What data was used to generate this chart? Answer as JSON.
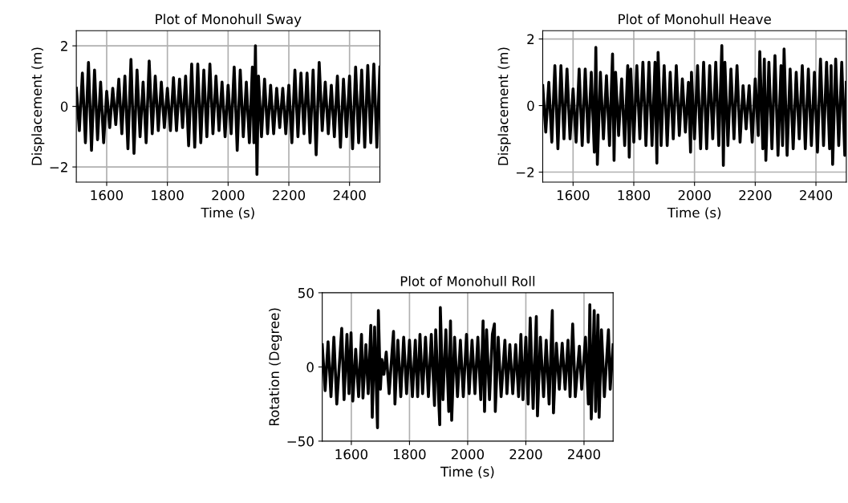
{
  "chart_data": [
    {
      "type": "line",
      "title": "Plot of Monohull Sway",
      "xlabel": "Time (s)",
      "ylabel": "Displacement (m)",
      "xlim": [
        1500,
        2500
      ],
      "xticks": [
        1600,
        1800,
        2000,
        2200,
        2400
      ],
      "ylim": [
        -2.5,
        2.5
      ],
      "yticks": [
        -2,
        0,
        2
      ],
      "grid": true,
      "series": [
        {
          "color": "#000000",
          "x": [
            1500,
            1510,
            1520,
            1530,
            1540,
            1550,
            1560,
            1570,
            1580,
            1590,
            1600,
            1610,
            1620,
            1630,
            1640,
            1650,
            1660,
            1670,
            1680,
            1690,
            1700,
            1710,
            1720,
            1730,
            1740,
            1750,
            1760,
            1770,
            1780,
            1790,
            1800,
            1810,
            1820,
            1830,
            1840,
            1850,
            1860,
            1870,
            1880,
            1890,
            1900,
            1910,
            1920,
            1930,
            1940,
            1950,
            1960,
            1970,
            1980,
            1990,
            2000,
            2010,
            2020,
            2030,
            2040,
            2050,
            2060,
            2070,
            2080,
            2085,
            2090,
            2095,
            2100,
            2110,
            2120,
            2130,
            2140,
            2150,
            2160,
            2170,
            2180,
            2190,
            2200,
            2210,
            2220,
            2230,
            2240,
            2250,
            2260,
            2270,
            2280,
            2290,
            2300,
            2310,
            2320,
            2330,
            2340,
            2350,
            2360,
            2370,
            2380,
            2390,
            2400,
            2410,
            2420,
            2430,
            2440,
            2450,
            2460,
            2470,
            2480,
            2490,
            2500
          ],
          "values": [
            0.6,
            -0.8,
            1.1,
            -1.2,
            1.45,
            -1.45,
            1.2,
            -1.1,
            0.8,
            -1.2,
            0.5,
            -0.7,
            0.6,
            -0.6,
            0.9,
            -0.9,
            1.0,
            -1.4,
            1.55,
            -1.55,
            1.2,
            -1.0,
            0.8,
            -1.2,
            1.5,
            -0.9,
            1.0,
            -0.8,
            0.8,
            -0.7,
            0.6,
            -0.8,
            0.95,
            -0.8,
            0.9,
            -0.7,
            1.0,
            -1.3,
            1.4,
            -1.35,
            1.4,
            -1.2,
            1.2,
            -1.0,
            1.4,
            -0.9,
            1.0,
            -0.8,
            0.8,
            -1.0,
            0.7,
            -0.9,
            1.3,
            -1.45,
            1.2,
            -1.0,
            0.8,
            -1.2,
            1.3,
            -1.2,
            2.0,
            -2.25,
            1.0,
            -1.0,
            0.9,
            -0.9,
            0.7,
            -0.9,
            0.6,
            -0.7,
            0.6,
            -0.9,
            0.7,
            -1.2,
            1.2,
            -1.0,
            1.1,
            -0.9,
            1.1,
            -1.2,
            1.2,
            -1.6,
            1.45,
            -0.8,
            0.8,
            -0.9,
            0.7,
            -1.0,
            1.0,
            -1.35,
            0.9,
            -1.0,
            1.0,
            -1.4,
            1.3,
            -1.2,
            1.2,
            -1.35,
            1.35,
            -1.2,
            1.4,
            -1.35,
            1.3
          ]
        }
      ]
    },
    {
      "type": "line",
      "title": "Plot of Monohull Heave",
      "xlabel": "Time (s)",
      "ylabel": "Displacement (m)",
      "xlim": [
        1500,
        2500
      ],
      "xticks": [
        1600,
        1800,
        2000,
        2200,
        2400
      ],
      "ylim": [
        -2.3,
        2.25
      ],
      "yticks": [
        -2,
        0,
        2
      ],
      "grid": true,
      "series": [
        {
          "color": "#000000",
          "x": [
            1500,
            1510,
            1520,
            1530,
            1540,
            1550,
            1560,
            1570,
            1580,
            1590,
            1600,
            1610,
            1620,
            1630,
            1640,
            1650,
            1660,
            1670,
            1675,
            1680,
            1690,
            1700,
            1710,
            1720,
            1730,
            1735,
            1740,
            1750,
            1760,
            1770,
            1780,
            1785,
            1790,
            1800,
            1810,
            1820,
            1830,
            1840,
            1850,
            1860,
            1870,
            1876,
            1880,
            1890,
            1900,
            1910,
            1920,
            1930,
            1940,
            1950,
            1960,
            1970,
            1980,
            1987,
            1990,
            2000,
            2010,
            2020,
            2030,
            2040,
            2050,
            2060,
            2070,
            2080,
            2090,
            2095,
            2100,
            2110,
            2120,
            2130,
            2140,
            2150,
            2160,
            2170,
            2180,
            2190,
            2200,
            2210,
            2215,
            2225,
            2230,
            2235,
            2245,
            2255,
            2265,
            2275,
            2285,
            2290,
            2295,
            2305,
            2315,
            2325,
            2335,
            2345,
            2355,
            2365,
            2375,
            2385,
            2395,
            2405,
            2415,
            2425,
            2435,
            2445,
            2450,
            2455,
            2465,
            2475,
            2485,
            2495,
            2500
          ],
          "values": [
            0.6,
            -0.8,
            0.7,
            -1.1,
            1.2,
            -1.3,
            1.2,
            -1.0,
            1.1,
            -1.0,
            0.5,
            -1.1,
            1.1,
            -1.2,
            1.1,
            -1.1,
            1.0,
            -1.4,
            1.75,
            -1.77,
            1.0,
            -1.0,
            0.9,
            -1.2,
            1.55,
            -1.65,
            1.0,
            -0.9,
            0.8,
            -1.2,
            1.2,
            -1.55,
            1.1,
            -1.1,
            1.2,
            -1.0,
            1.3,
            -1.2,
            1.3,
            -1.2,
            1.3,
            -1.73,
            1.6,
            -1.2,
            1.2,
            -1.2,
            1.0,
            -1.0,
            1.2,
            -0.9,
            0.8,
            -0.8,
            0.7,
            -1.4,
            1.0,
            -1.0,
            1.2,
            -1.3,
            1.3,
            -1.3,
            1.2,
            -1.0,
            1.3,
            -1.2,
            1.8,
            -1.8,
            1.3,
            -1.2,
            1.1,
            -1.0,
            1.2,
            -1.1,
            0.6,
            -0.7,
            0.6,
            -1.1,
            0.8,
            -0.9,
            1.62,
            -1.3,
            1.4,
            -1.65,
            1.3,
            -1.3,
            1.5,
            -1.5,
            1.2,
            -1.2,
            1.7,
            -1.5,
            1.1,
            -1.3,
            1.0,
            -1.0,
            1.2,
            -1.3,
            1.1,
            -1.2,
            1.0,
            -1.4,
            1.4,
            -1.2,
            1.3,
            -1.3,
            1.2,
            -1.77,
            1.4,
            -1.2,
            1.3,
            -1.5,
            0.7
          ]
        }
      ]
    },
    {
      "type": "line",
      "title": "Plot of Monohull Roll",
      "xlabel": "Time (s)",
      "ylabel": "Rotation (Degree)",
      "xlim": [
        1500,
        2500
      ],
      "xticks": [
        1600,
        1800,
        2000,
        2200,
        2400
      ],
      "ylim": [
        -50,
        50
      ],
      "yticks": [
        -50,
        0,
        50
      ],
      "grid": "x",
      "series": [
        {
          "color": "#000000",
          "x": [
            1500,
            1510,
            1520,
            1530,
            1540,
            1550,
            1567,
            1575,
            1585,
            1592,
            1599,
            1605,
            1615,
            1625,
            1635,
            1640,
            1650,
            1658,
            1667,
            1672,
            1680,
            1690,
            1693,
            1700,
            1705,
            1712,
            1720,
            1730,
            1745,
            1750,
            1760,
            1770,
            1780,
            1790,
            1800,
            1810,
            1820,
            1828,
            1836,
            1845,
            1855,
            1865,
            1875,
            1886,
            1890,
            1904,
            1906,
            1915,
            1925,
            1935,
            1941,
            1945,
            1955,
            1965,
            1975,
            1985,
            1996,
            2005,
            2015,
            2025,
            2035,
            2045,
            2053,
            2058,
            2065,
            2075,
            2085,
            2092,
            2095,
            2105,
            2115,
            2128,
            2135,
            2145,
            2155,
            2165,
            2175,
            2183,
            2190,
            2200,
            2208,
            2215,
            2225,
            2236,
            2240,
            2250,
            2261,
            2270,
            2280,
            2291,
            2295,
            2305,
            2315,
            2325,
            2335,
            2345,
            2352,
            2361,
            2370,
            2384,
            2392,
            2405,
            2415,
            2420,
            2425,
            2435,
            2440,
            2448,
            2452,
            2460,
            2470,
            2484,
            2490,
            2500
          ],
          "values": [
            15,
            -16,
            17,
            -20,
            20,
            -25,
            26,
            -22,
            22,
            -18,
            23,
            -23,
            12,
            -20,
            22,
            -21,
            15,
            -18,
            28,
            -34,
            27,
            -41,
            38,
            -15,
            5,
            -5,
            10,
            -18,
            24,
            -25,
            18,
            -20,
            20,
            -18,
            18,
            -20,
            18,
            -20,
            22,
            -18,
            20,
            -20,
            22,
            -26,
            25,
            -39,
            40,
            -22,
            25,
            -30,
            31,
            -36,
            20,
            -20,
            18,
            -20,
            22,
            -18,
            18,
            -18,
            20,
            -22,
            31,
            -30,
            25,
            -22,
            22,
            29,
            -30,
            20,
            -20,
            18,
            -18,
            15,
            -18,
            15,
            -20,
            22,
            -22,
            20,
            -25,
            33,
            -28,
            34,
            -33,
            20,
            -20,
            18,
            -25,
            38,
            -31,
            16,
            -15,
            16,
            -15,
            18,
            -20,
            29,
            -20,
            14,
            -15,
            20,
            -25,
            42,
            -35,
            38,
            -30,
            35,
            -34,
            25,
            -20,
            25,
            -15,
            15
          ]
        }
      ]
    }
  ]
}
